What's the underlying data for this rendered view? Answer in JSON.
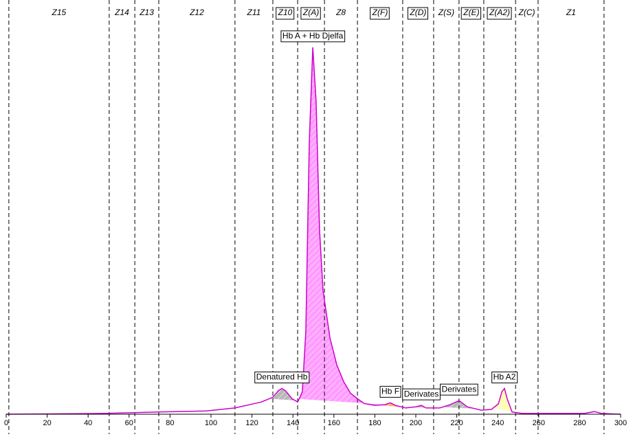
{
  "chart_data": {
    "type": "line",
    "x": [
      0,
      47.3,
      74.5,
      97.7,
      111.7,
      124.5,
      130.2,
      132.9,
      134.6,
      136.3,
      139.6,
      142.3,
      144.6,
      146.3,
      148.0,
      149.7,
      151.3,
      153.0,
      154.7,
      158.1,
      161.4,
      164.8,
      168.1,
      171.5,
      174.8,
      179.9,
      184.9,
      187.6,
      190.0,
      195.0,
      200.0,
      202.7,
      205.0,
      211.7,
      216.8,
      221.1,
      225.2,
      231.9,
      236.9,
      240.3,
      242.0,
      243.3,
      244.6,
      247.0,
      252.0,
      282.2,
      287.2,
      290.6,
      300
    ],
    "values": [
      0,
      0.2,
      0.6,
      0.9,
      1.7,
      3.3,
      4.6,
      6.4,
      7.0,
      6.4,
      4.2,
      3.3,
      6.1,
      22.6,
      73.9,
      99.6,
      84.9,
      50.1,
      33.6,
      20.7,
      13.4,
      8.8,
      5.7,
      4.2,
      2.9,
      2.4,
      2.6,
      3.1,
      2.4,
      1.7,
      2.0,
      2.4,
      1.7,
      1.7,
      2.6,
      3.7,
      2.0,
      1.1,
      1.3,
      2.8,
      6.1,
      7.0,
      4.2,
      0.6,
      0.2,
      0.2,
      0.7,
      0.2,
      0
    ],
    "color": "#cc00cc",
    "xlim": [
      0,
      300
    ],
    "xticks": [
      0,
      20,
      40,
      60,
      80,
      100,
      120,
      140,
      160,
      180,
      200,
      220,
      240,
      260,
      280,
      300
    ],
    "ylim": [
      0,
      102
    ],
    "zone_boundaries": [
      1.3,
      50.3,
      62.8,
      74.5,
      111.7,
      130.2,
      142.3,
      155.4,
      171.5,
      193.6,
      208.7,
      221.1,
      233.2,
      248.7,
      259.7,
      291.9
    ],
    "zones": [
      {
        "label": "Z15",
        "boxed": false
      },
      {
        "label": "Z14",
        "boxed": false
      },
      {
        "label": "Z13",
        "boxed": false
      },
      {
        "label": "Z12",
        "boxed": false
      },
      {
        "label": "Z11",
        "boxed": false
      },
      {
        "label": "Z10",
        "boxed": true
      },
      {
        "label": "Z(A)",
        "boxed": true
      },
      {
        "label": "Z8",
        "boxed": false
      },
      {
        "label": "Z(F)",
        "boxed": true
      },
      {
        "label": "Z(D)",
        "boxed": true
      },
      {
        "label": "Z(S)",
        "boxed": false
      },
      {
        "label": "Z(E)",
        "boxed": true
      },
      {
        "label": "Z(A2)",
        "boxed": true
      },
      {
        "label": "Z(C)",
        "boxed": false
      },
      {
        "label": "Z1",
        "boxed": false
      }
    ],
    "peaks": [
      {
        "label": "Denatured Hb",
        "start": 128.5,
        "end": 141.0,
        "color": "#b8b8b8"
      },
      {
        "label": "Hb A + Hb Djelfa",
        "start": 143.0,
        "end": 190.0,
        "color": "#ff9cff"
      },
      {
        "label": "Hb F",
        "start": 182.0,
        "end": 194.0,
        "color": "#ffb070"
      },
      {
        "label": "Derivates",
        "start": 198.0,
        "end": 208.0,
        "color": "#b8b8b8"
      },
      {
        "label": "Derivates",
        "start": 213.0,
        "end": 229.0,
        "color": "#b8b8b8"
      },
      {
        "label": "Hb A2",
        "start": 238.0,
        "end": 248.0,
        "color": "#ffffb0"
      }
    ]
  }
}
